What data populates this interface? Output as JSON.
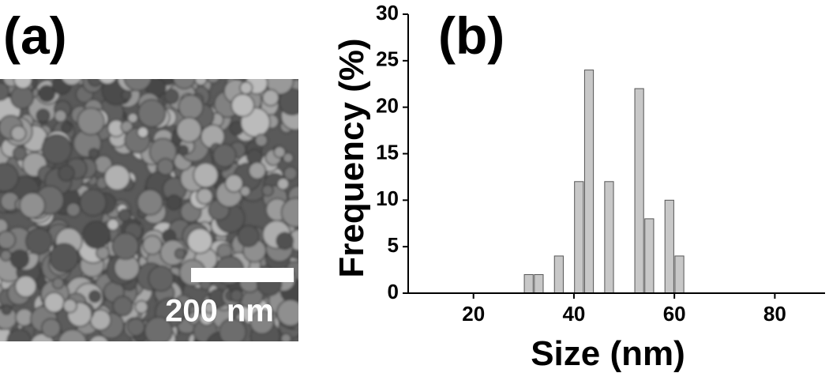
{
  "panel_a": {
    "label": "(a)",
    "scale_bar": "200 nm"
  },
  "chart_data": {
    "type": "histogram",
    "panel_label": "(b)",
    "xlabel": "Size (nm)",
    "ylabel": "Frequency (%)",
    "bins": [
      30,
      32,
      34,
      36,
      38,
      40,
      42,
      44,
      46,
      48,
      50,
      52,
      54,
      56,
      58,
      60,
      62
    ],
    "values": [
      2,
      2,
      0,
      4,
      0,
      12,
      24,
      0,
      12,
      0,
      0,
      22,
      8,
      0,
      10,
      4
    ],
    "color": "#c8c8c8",
    "xlim": [
      7,
      90
    ],
    "xticks": [
      20,
      40,
      60,
      80
    ],
    "ylim": [
      0,
      30
    ],
    "yticks": [
      0,
      5,
      10,
      15,
      20,
      25,
      30
    ],
    "grid": false
  }
}
